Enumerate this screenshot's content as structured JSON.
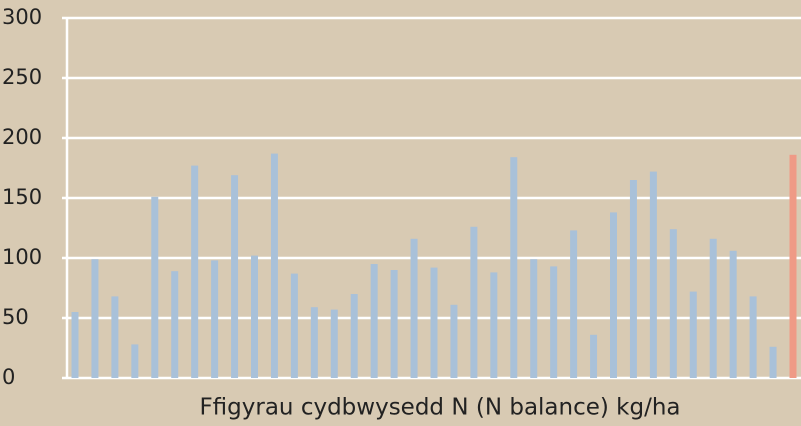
{
  "chart_data": {
    "type": "bar",
    "x_label": "Ffigyrau cydbwysedd N (N balance) kg/ha",
    "categories": [
      null,
      null,
      null,
      null,
      null,
      null,
      null,
      null,
      null,
      null,
      null,
      null,
      null,
      null,
      null,
      null,
      null,
      null,
      null,
      null,
      null,
      null,
      null,
      null,
      null,
      null,
      null,
      null,
      null,
      null,
      null,
      null,
      null,
      null,
      null,
      null,
      null
    ],
    "values": [
      55,
      99,
      68,
      28,
      151,
      89,
      177,
      98,
      169,
      102,
      187,
      87,
      59,
      57,
      70,
      95,
      90,
      116,
      92,
      61,
      126,
      88,
      184,
      99,
      93,
      123,
      36,
      138,
      165,
      172,
      124,
      72,
      116,
      106,
      68,
      26,
      186
    ],
    "colors": [
      "#a9c1d9",
      "#a9c1d9",
      "#a9c1d9",
      "#a9c1d9",
      "#a9c1d9",
      "#a9c1d9",
      "#a9c1d9",
      "#a9c1d9",
      "#a9c1d9",
      "#a9c1d9",
      "#a9c1d9",
      "#a9c1d9",
      "#a9c1d9",
      "#a9c1d9",
      "#a9c1d9",
      "#a9c1d9",
      "#a9c1d9",
      "#a9c1d9",
      "#a9c1d9",
      "#a9c1d9",
      "#a9c1d9",
      "#a9c1d9",
      "#a9c1d9",
      "#a9c1d9",
      "#a9c1d9",
      "#a9c1d9",
      "#a9c1d9",
      "#a9c1d9",
      "#a9c1d9",
      "#a9c1d9",
      "#a9c1d9",
      "#a9c1d9",
      "#a9c1d9",
      "#a9c1d9",
      "#a9c1d9",
      "#a9c1d9",
      "#ef9a86"
    ],
    "ylim": [
      0,
      300
    ],
    "yticks": [
      0,
      50,
      100,
      150,
      200,
      250,
      300
    ],
    "grid": true
  }
}
